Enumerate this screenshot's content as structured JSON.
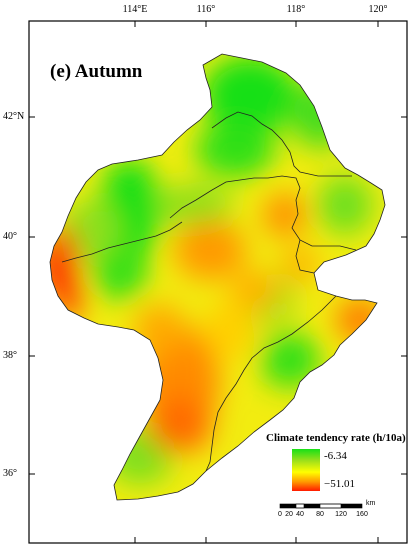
{
  "map": {
    "panel_title": "(e) Autumn",
    "longitude_ticks": [
      "114°E",
      "116°",
      "118°",
      "120°"
    ],
    "latitude_ticks": [
      "42°N",
      "40°",
      "38°",
      "36°"
    ]
  },
  "legend": {
    "title": "Climate tendency rate (h/10a)",
    "max_label": "-6.34",
    "min_label": "−51.01",
    "colors": {
      "high": "#18e018",
      "mid": "#ffff00",
      "low": "#ff1a00"
    }
  },
  "scale_bar": {
    "labels": [
      "0",
      "20",
      "40",
      "80",
      "120",
      "160"
    ],
    "unit": "km"
  }
}
